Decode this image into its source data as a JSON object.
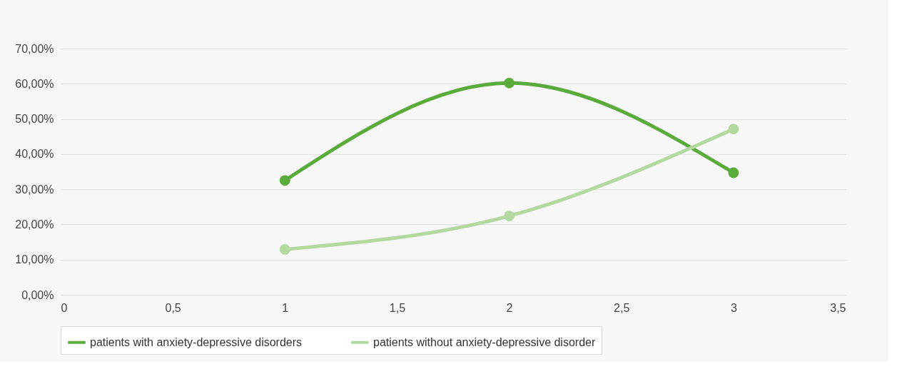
{
  "chart_data": {
    "type": "line",
    "x": [
      1,
      2,
      3
    ],
    "series": [
      {
        "name": "patients with anxiety-depressive disorders",
        "color": "#5aab3b",
        "values": [
          32.5,
          60.2,
          34.7
        ]
      },
      {
        "name": "patients without anxiety-depressive disorder",
        "color": "#b3d9a0",
        "values": [
          12.9,
          22.4,
          47.1
        ]
      }
    ],
    "xlim": [
      0,
      3.5
    ],
    "xticks": [
      0,
      {
        "value": 0.5,
        "label": "0,5"
      },
      1,
      {
        "value": 1.5,
        "label": "1,5"
      },
      2,
      {
        "value": 2.5,
        "label": "2,5"
      },
      3,
      {
        "value": 3.5,
        "label": "3,5"
      }
    ],
    "ylim": [
      0,
      70
    ],
    "yticks": [
      {
        "value": 0,
        "label": "0,00%"
      },
      {
        "value": 10,
        "label": "10,00%"
      },
      {
        "value": 20,
        "label": "20,00%"
      },
      {
        "value": 30,
        "label": "30,00%"
      },
      {
        "value": 40,
        "label": "40,00%"
      },
      {
        "value": 50,
        "label": "50,00%"
      },
      {
        "value": 60,
        "label": "60,00%"
      },
      {
        "value": 70,
        "label": "70,00%"
      }
    ],
    "grid": "y",
    "legend": "bottom",
    "marker": "circle",
    "line_style": "solid"
  }
}
